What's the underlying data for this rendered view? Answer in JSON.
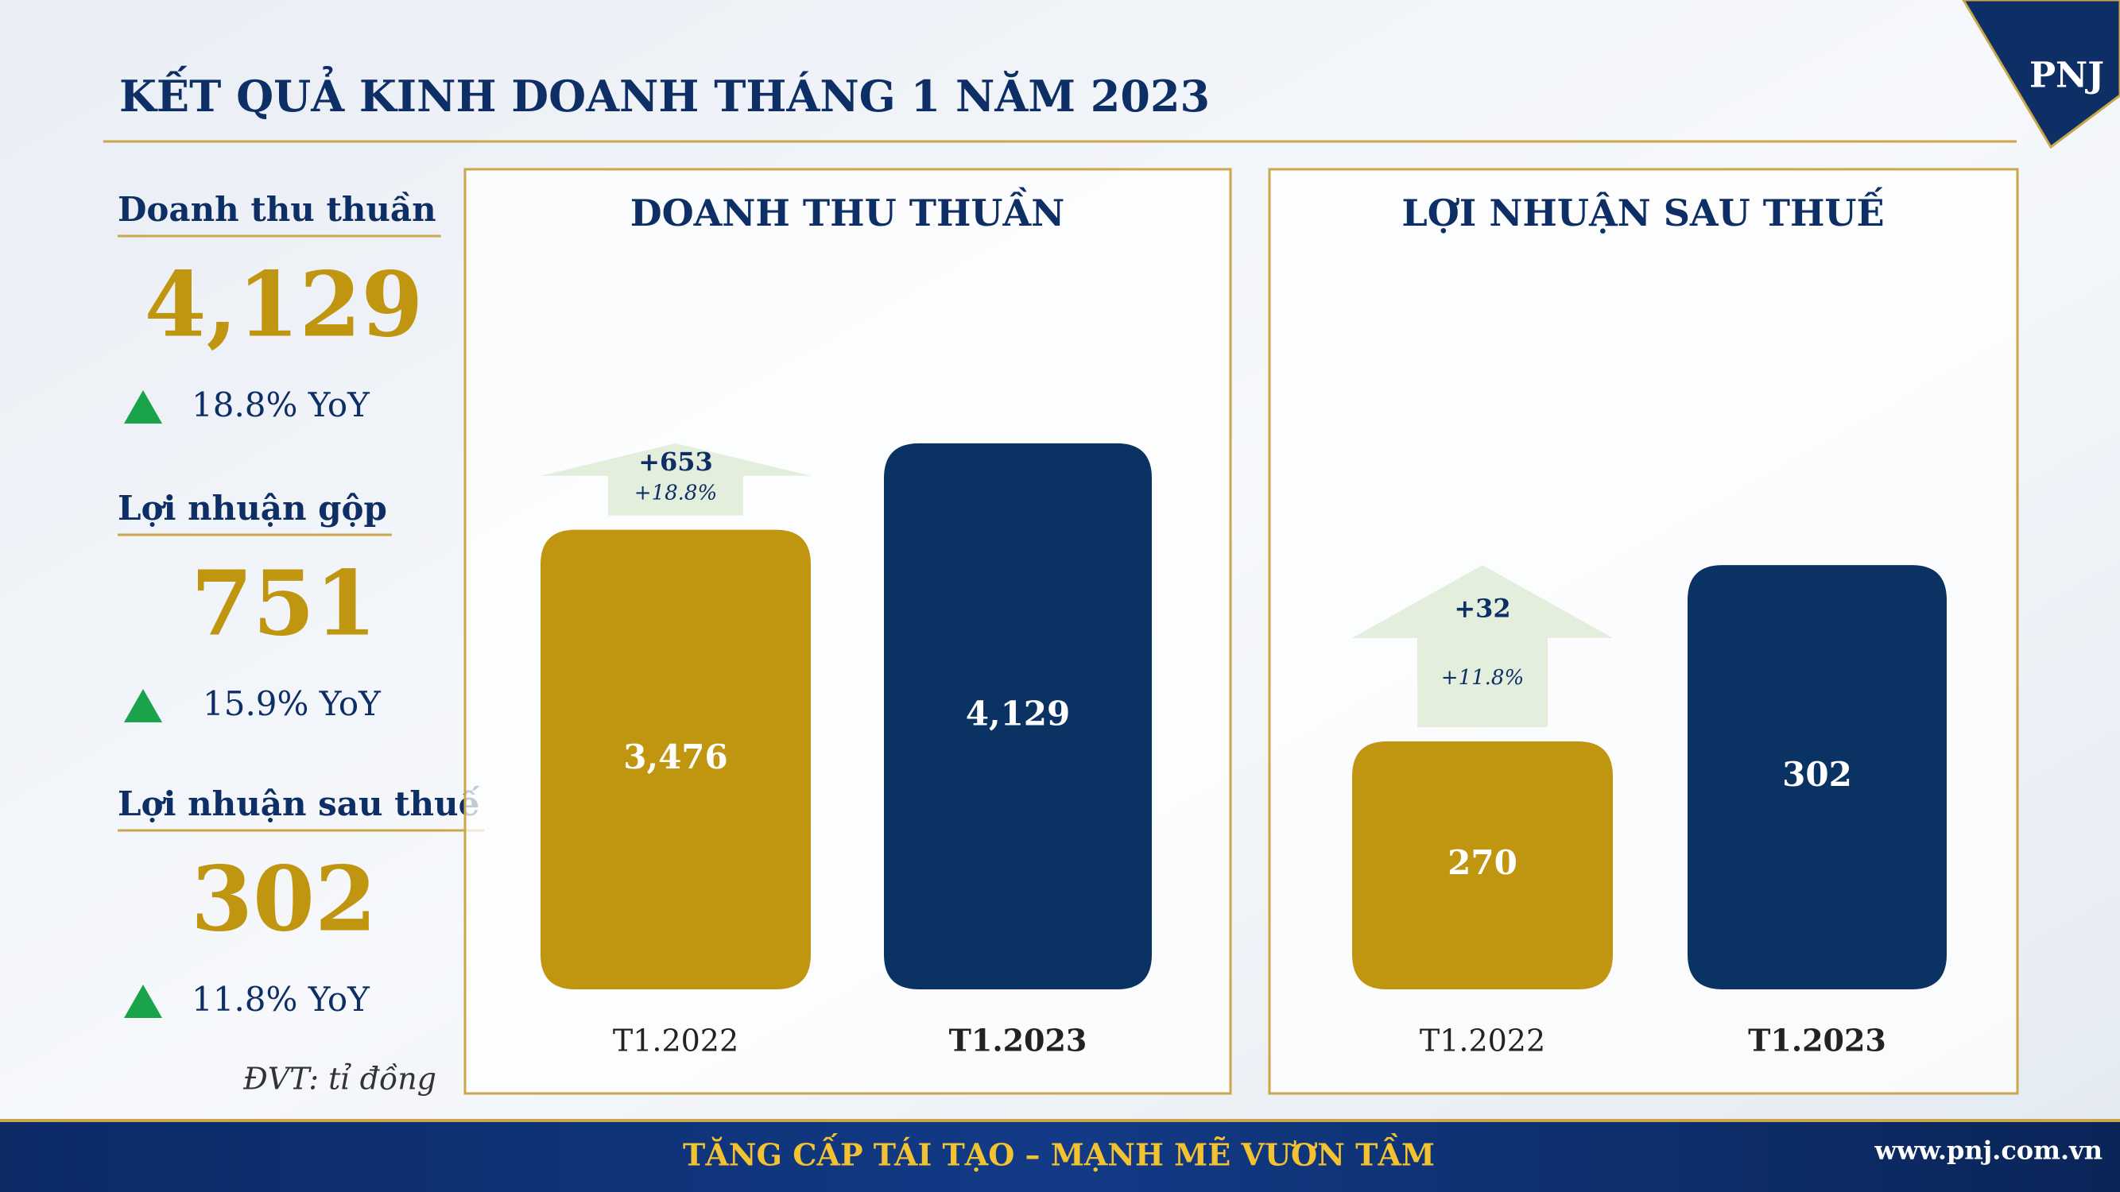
{
  "header": {
    "title": "KẾT QUẢ KINH DOANH THÁNG 1 NĂM 2023",
    "logo": "PNJ"
  },
  "kpis": [
    {
      "label": "Doanh thu thuần",
      "value": "4,129",
      "change": "18.8% YoY"
    },
    {
      "label": "Lợi nhuận gộp",
      "value": "751",
      "change": "15.9% YoY"
    },
    {
      "label": "Lợi nhuận sau thuế",
      "value": "302",
      "change": "11.8% YoY"
    }
  ],
  "unit_note": "ĐVT: tỉ đồng",
  "chart_data": [
    {
      "type": "bar",
      "title": "DOANH THU THUẦN",
      "categories": [
        "T1.2022",
        "T1.2023"
      ],
      "values": [
        3476,
        4129
      ],
      "value_labels": [
        "3,476",
        "4,129"
      ],
      "colors": [
        "#c0950f",
        "#0a3363"
      ],
      "ylim": [
        0,
        5000
      ],
      "change": {
        "label": "+653",
        "percent": "+18.8%"
      }
    },
    {
      "type": "bar",
      "title": "LỢI NHUẬN SAU THUẾ",
      "categories": [
        "T1.2022",
        "T1.2023"
      ],
      "values": [
        270,
        302
      ],
      "value_labels": [
        "270",
        "302"
      ],
      "colors": [
        "#c0950f",
        "#0a3363"
      ],
      "ylim": [
        225,
        345
      ],
      "change": {
        "label": "+32",
        "percent": "+11.8%"
      }
    }
  ],
  "footer": {
    "slogan": "TĂNG CẤP TÁI TẠO – MẠNH MẼ VƯƠN TẦM",
    "website": "www.pnj.com.vn"
  }
}
